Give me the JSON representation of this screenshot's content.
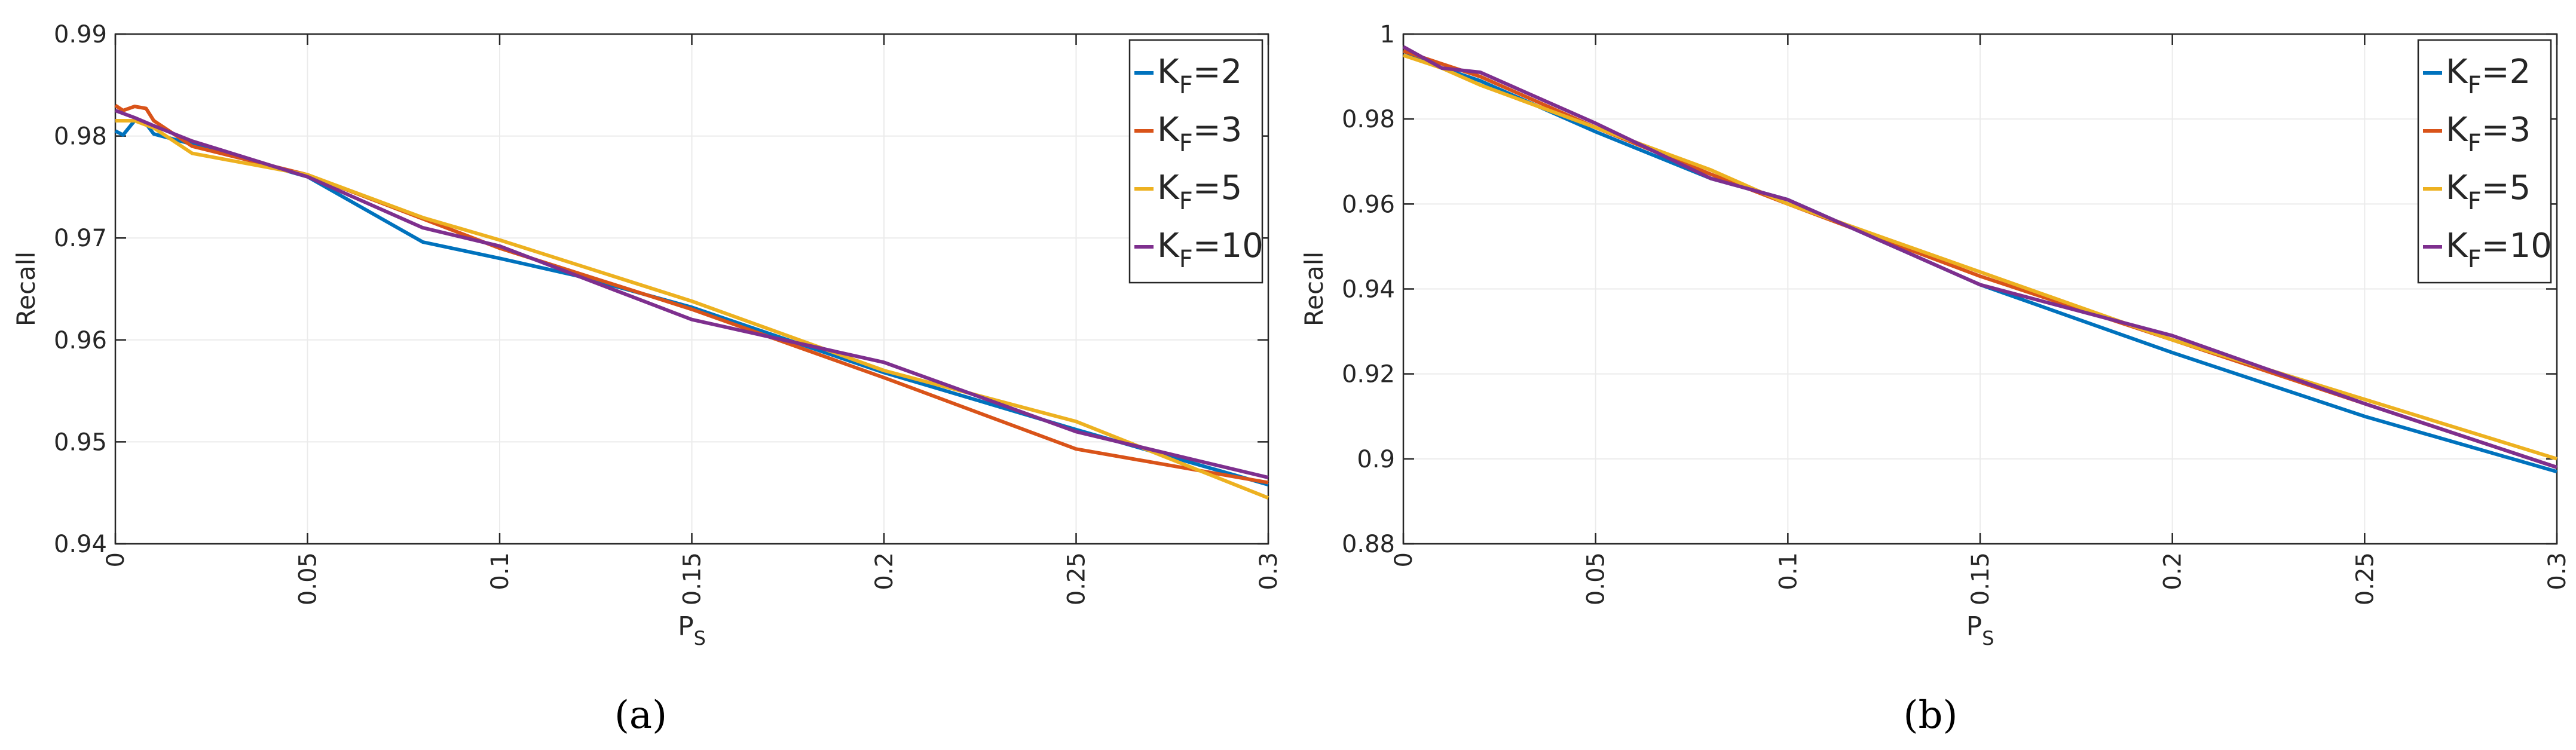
{
  "captions": [
    "(a)",
    "(b)"
  ],
  "colors": {
    "KF2": "#0072BD",
    "KF3": "#D95319",
    "KF5": "#EDB120",
    "KF10": "#7E2F8E",
    "grid": "#ebebeb",
    "axis": "#262626"
  },
  "chart_data": [
    {
      "type": "line",
      "panel": "a",
      "xlabel_main": "P",
      "xlabel_sub": "S",
      "ylabel": "Recall",
      "xlim": [
        0,
        0.3
      ],
      "ylim": [
        0.94,
        0.99
      ],
      "xticks": [
        0,
        0.05,
        0.1,
        0.15,
        0.2,
        0.25,
        0.3
      ],
      "xtick_labels": [
        "0",
        "0.05",
        "0.1",
        "0.15",
        "0.2",
        "0.25",
        "0.3"
      ],
      "yticks": [
        0.94,
        0.95,
        0.96,
        0.97,
        0.98,
        0.99
      ],
      "ytick_labels": [
        "0.94",
        "0.95",
        "0.96",
        "0.97",
        "0.98",
        "0.99"
      ],
      "grid": true,
      "legend_position": "top-right",
      "series": [
        {
          "key": "KF2",
          "label_main": "K",
          "label_sub": "F",
          "label_tail": "=2",
          "x": [
            0,
            0.002,
            0.005,
            0.008,
            0.01,
            0.02,
            0.05,
            0.08,
            0.1,
            0.12,
            0.15,
            0.2,
            0.25,
            0.3
          ],
          "y": [
            0.9805,
            0.9801,
            0.9815,
            0.9812,
            0.9802,
            0.9792,
            0.976,
            0.9696,
            0.968,
            0.9663,
            0.9632,
            0.9568,
            0.9512,
            0.9458
          ]
        },
        {
          "key": "KF3",
          "label_main": "K",
          "label_sub": "F",
          "label_tail": "=3",
          "x": [
            0,
            0.002,
            0.005,
            0.008,
            0.01,
            0.02,
            0.05,
            0.1,
            0.15,
            0.2,
            0.25,
            0.3
          ],
          "y": [
            0.983,
            0.9825,
            0.9829,
            0.9827,
            0.9815,
            0.979,
            0.9762,
            0.969,
            0.963,
            0.9563,
            0.9493,
            0.946
          ]
        },
        {
          "key": "KF5",
          "label_main": "K",
          "label_sub": "F",
          "label_tail": "=5",
          "x": [
            0,
            0.005,
            0.01,
            0.02,
            0.05,
            0.08,
            0.1,
            0.15,
            0.2,
            0.25,
            0.3
          ],
          "y": [
            0.9815,
            0.9815,
            0.9808,
            0.9783,
            0.9762,
            0.972,
            0.9698,
            0.9638,
            0.957,
            0.952,
            0.9445
          ]
        },
        {
          "key": "KF10",
          "label_main": "K",
          "label_sub": "F",
          "label_tail": "=10",
          "x": [
            0,
            0.005,
            0.01,
            0.02,
            0.05,
            0.08,
            0.1,
            0.15,
            0.2,
            0.25,
            0.3
          ],
          "y": [
            0.9825,
            0.9818,
            0.981,
            0.9795,
            0.976,
            0.971,
            0.9692,
            0.962,
            0.9578,
            0.951,
            0.9465
          ]
        }
      ]
    },
    {
      "type": "line",
      "panel": "b",
      "xlabel_main": "P",
      "xlabel_sub": "S",
      "ylabel": "Recall",
      "xlim": [
        0,
        0.3
      ],
      "ylim": [
        0.88,
        1.0
      ],
      "xticks": [
        0,
        0.05,
        0.1,
        0.15,
        0.2,
        0.25,
        0.3
      ],
      "xtick_labels": [
        "0",
        "0.05",
        "0.1",
        "0.15",
        "0.2",
        "0.25",
        "0.3"
      ],
      "yticks": [
        0.88,
        0.9,
        0.92,
        0.94,
        0.96,
        0.98,
        1.0
      ],
      "ytick_labels": [
        "0.88",
        "0.9",
        "0.92",
        "0.94",
        "0.96",
        "0.98",
        "1"
      ],
      "grid": true,
      "legend_position": "top-right",
      "series": [
        {
          "key": "KF2",
          "label_main": "K",
          "label_sub": "F",
          "label_tail": "=2",
          "x": [
            0,
            0.01,
            0.02,
            0.05,
            0.08,
            0.1,
            0.15,
            0.2,
            0.25,
            0.3
          ],
          "y": [
            0.996,
            0.992,
            0.989,
            0.977,
            0.966,
            0.961,
            0.941,
            0.925,
            0.91,
            0.897
          ]
        },
        {
          "key": "KF3",
          "label_main": "K",
          "label_sub": "F",
          "label_tail": "=3",
          "x": [
            0,
            0.01,
            0.02,
            0.05,
            0.08,
            0.1,
            0.15,
            0.2,
            0.25,
            0.3
          ],
          "y": [
            0.996,
            0.993,
            0.99,
            0.978,
            0.967,
            0.96,
            0.943,
            0.928,
            0.913,
            0.898
          ]
        },
        {
          "key": "KF5",
          "label_main": "K",
          "label_sub": "F",
          "label_tail": "=5",
          "x": [
            0,
            0.01,
            0.02,
            0.05,
            0.08,
            0.1,
            0.15,
            0.2,
            0.25,
            0.3
          ],
          "y": [
            0.995,
            0.992,
            0.988,
            0.978,
            0.968,
            0.96,
            0.944,
            0.928,
            0.914,
            0.9
          ]
        },
        {
          "key": "KF10",
          "label_main": "K",
          "label_sub": "F",
          "label_tail": "=10",
          "x": [
            0,
            0.01,
            0.02,
            0.05,
            0.08,
            0.1,
            0.15,
            0.2,
            0.25,
            0.3
          ],
          "y": [
            0.997,
            0.992,
            0.991,
            0.979,
            0.966,
            0.961,
            0.941,
            0.929,
            0.913,
            0.898
          ]
        }
      ]
    }
  ]
}
